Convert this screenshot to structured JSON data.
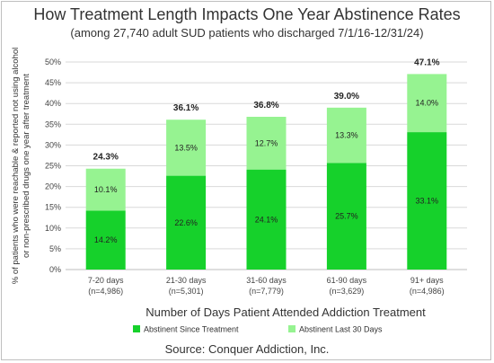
{
  "title": "How Treatment Length Impacts One Year Abstinence Rates",
  "subtitle": "(among 27,740 adult SUD patients who discharged 7/1/16-12/31/24)",
  "source": "Source: Conquer Addiction, Inc.",
  "chart_data": {
    "type": "bar",
    "stacked": true,
    "categories": [
      [
        "7-20 days",
        "(n=4,986)"
      ],
      [
        "21-30 days",
        "(n=5,301)"
      ],
      [
        "31-60 days",
        "(n=7,779)"
      ],
      [
        "61-90 days",
        "(n=3,629)"
      ],
      [
        "91+ days",
        "(n=4,986)"
      ]
    ],
    "series": [
      {
        "name": "Abstinent Since Treatment",
        "values": [
          14.2,
          22.6,
          24.1,
          25.7,
          33.1
        ],
        "labels": [
          "14.2%",
          "22.6%",
          "24.1%",
          "25.7%",
          "33.1%"
        ],
        "color": "#16d12b"
      },
      {
        "name": "Abstinent Last 30 Days",
        "values": [
          10.1,
          13.5,
          12.7,
          13.3,
          14.0
        ],
        "labels": [
          "10.1%",
          "13.5%",
          "12.7%",
          "13.3%",
          "14.0%"
        ],
        "color": "#96f391"
      }
    ],
    "totals": [
      "24.3%",
      "36.1%",
      "36.8%",
      "39.0%",
      "47.1%"
    ],
    "xlabel": "Number of Days Patient Attended Addiction Treatment",
    "ylabel": [
      "% of patients who were reachable & reported not using alcohol",
      "or non-prescribed drugs one year after treatment"
    ],
    "ylim": [
      0,
      50
    ],
    "yticks": [
      "0%",
      "5%",
      "10%",
      "15%",
      "20%",
      "25%",
      "30%",
      "35%",
      "40%",
      "45%",
      "50%"
    ],
    "grid": true,
    "legend_position": "bottom"
  }
}
